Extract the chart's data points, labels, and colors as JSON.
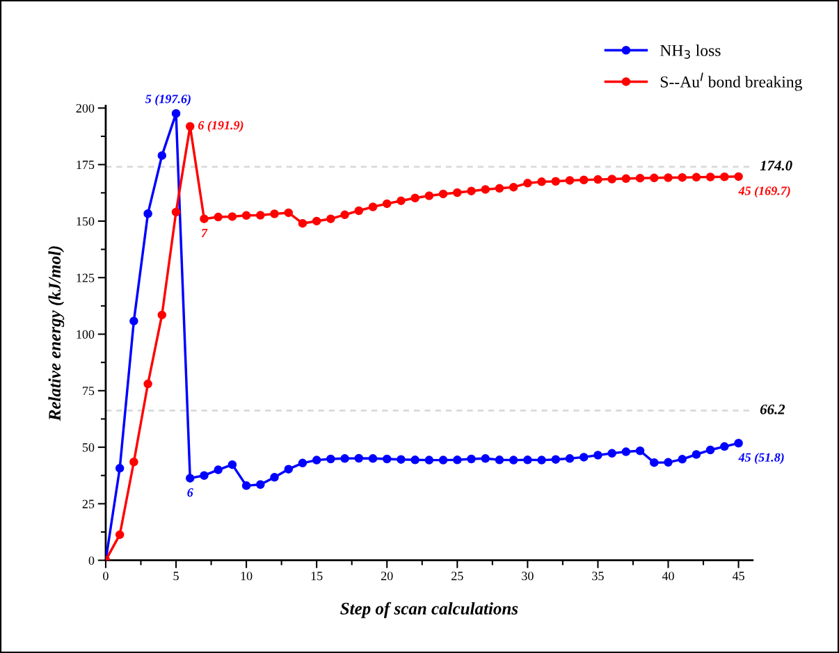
{
  "chart_data": {
    "type": "line",
    "xlabel": "Step of scan calculations",
    "ylabel": "Relative energy (kJ/mol)",
    "x": [
      0,
      1,
      2,
      3,
      4,
      5,
      6,
      7,
      8,
      9,
      10,
      11,
      12,
      13,
      14,
      15,
      16,
      17,
      18,
      19,
      20,
      21,
      22,
      23,
      24,
      25,
      26,
      27,
      28,
      29,
      30,
      31,
      32,
      33,
      34,
      35,
      36,
      37,
      38,
      39,
      40,
      41,
      42,
      43,
      44,
      45
    ],
    "series": [
      {
        "name": "NH$_{3}$ loss",
        "color": "#0000ff",
        "values": [
          0,
          40.7,
          105.8,
          153.3,
          179,
          197.6,
          36.3,
          37.5,
          40,
          42.3,
          33,
          33.5,
          36.7,
          40.3,
          43,
          44.3,
          44.8,
          45,
          45.1,
          45,
          44.8,
          44.6,
          44.4,
          44.3,
          44.3,
          44.4,
          44.8,
          45,
          44.4,
          44.3,
          44.4,
          44.3,
          44.6,
          45,
          45.6,
          46.5,
          47.3,
          48,
          48.4,
          43.2,
          43.3,
          44.7,
          46.8,
          48.8,
          50.3,
          51.8
        ]
      },
      {
        "name": "S--Au$^{I}$ bond breaking",
        "color": "#ff0000",
        "values": [
          0,
          11.3,
          43.5,
          78,
          108.5,
          154,
          191.9,
          151,
          151.8,
          152,
          152.5,
          152.6,
          153.2,
          153.7,
          149,
          150,
          151,
          152.8,
          154.6,
          156.3,
          157.7,
          159,
          160.2,
          161.2,
          162,
          162.6,
          163.3,
          164,
          164.5,
          165,
          166.8,
          167.4,
          167.6,
          168,
          168.2,
          168.4,
          168.6,
          168.8,
          169,
          169.1,
          169.2,
          169.3,
          169.4,
          169.5,
          169.6,
          169.7
        ]
      }
    ],
    "xlim": [
      0,
      46
    ],
    "xticks": [
      0,
      5,
      10,
      15,
      20,
      25,
      30,
      35,
      40,
      45
    ],
    "ylim": [
      0,
      201
    ],
    "yticks": [
      0,
      25,
      50,
      75,
      100,
      125,
      150,
      175,
      200
    ],
    "ref_lines": [
      {
        "axis": "y",
        "value": 174.0,
        "label": "174.0",
        "color": "#d9d9d9",
        "line_style": "dashed"
      },
      {
        "axis": "y",
        "value": 66.2,
        "label": "66.2",
        "color": "#d9d9d9",
        "line_style": "dashed"
      }
    ],
    "annotations": [
      {
        "text": "5 (197.6)",
        "x": 5,
        "y": 197.6
      },
      {
        "text": "6 (191.9)",
        "x": 6,
        "y": 191.9
      },
      {
        "text": "7",
        "x": 7,
        "y": 151
      },
      {
        "text": "6",
        "x": 6,
        "y": 36.3
      },
      {
        "text": "45 (169.7)",
        "x": 45,
        "y": 169.7
      },
      {
        "text": "45 (51.8)",
        "x": 45,
        "y": 51.8
      }
    ],
    "legend": "top right",
    "marker": "circle",
    "line_style": "solid",
    "grid": false
  }
}
